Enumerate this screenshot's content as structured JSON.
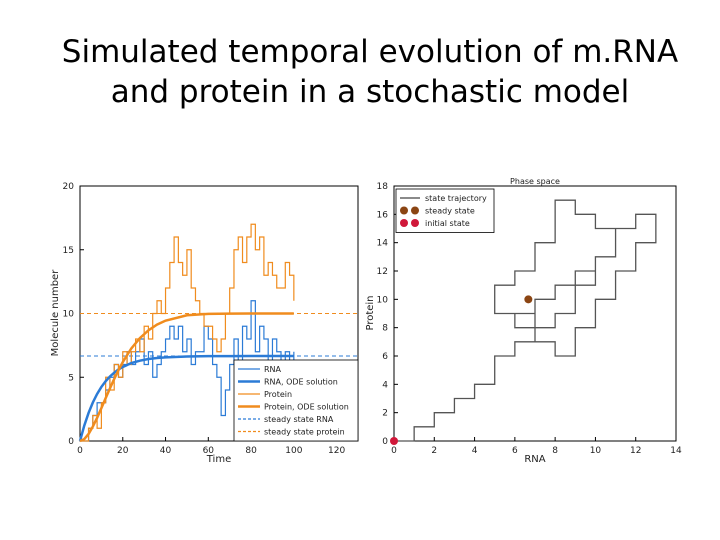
{
  "slide": {
    "title_line1": "Simulated temporal evolution of m.RNA",
    "title_line2": "and protein in a stochastic model"
  },
  "chart_data": [
    {
      "type": "line",
      "title": "",
      "xlabel": "Time",
      "ylabel": "Molecule number",
      "xlim": [
        0,
        130
      ],
      "ylim": [
        0,
        20
      ],
      "xticks": [
        "0",
        "20",
        "40",
        "60",
        "80",
        "100",
        "120"
      ],
      "yticks": [
        "0",
        "5",
        "10",
        "15",
        "20"
      ],
      "legend_position": "lower-right",
      "colors": {
        "rna": "#2b7bd6",
        "protein": "#f08c1e"
      },
      "legend": [
        {
          "label": "RNA",
          "color": "#2b7bd6",
          "style": "thin"
        },
        {
          "label": "RNA, ODE solution",
          "color": "#2b7bd6",
          "style": "thick"
        },
        {
          "label": "Protein",
          "color": "#f08c1e",
          "style": "thin"
        },
        {
          "label": "Protein, ODE solution",
          "color": "#f08c1e",
          "style": "thick"
        },
        {
          "label": "steady state RNA",
          "color": "#2b7bd6",
          "style": "dashed"
        },
        {
          "label": "steady state protein",
          "color": "#f08c1e",
          "style": "dashed"
        }
      ],
      "steady_state": {
        "rna": 6.67,
        "protein": 10
      },
      "series": [
        {
          "name": "RNA",
          "step": true,
          "x": [
            0,
            2,
            4,
            6,
            8,
            10,
            12,
            14,
            16,
            18,
            20,
            22,
            24,
            26,
            28,
            30,
            32,
            34,
            36,
            38,
            40,
            42,
            44,
            46,
            48,
            50,
            52,
            54,
            56,
            58,
            60,
            62,
            64,
            66,
            68,
            70,
            72,
            74,
            76,
            78,
            80,
            82,
            84,
            86,
            88,
            90,
            92,
            94,
            96,
            98,
            100
          ],
          "y": [
            0,
            0,
            1,
            2,
            3,
            3,
            4,
            5,
            6,
            5,
            6,
            7,
            6,
            7,
            8,
            6,
            7,
            5,
            6,
            7,
            8,
            9,
            8,
            9,
            7,
            8,
            6,
            7,
            7,
            9,
            8,
            6,
            5,
            2,
            4,
            6,
            8,
            6,
            9,
            8,
            11,
            7,
            9,
            8,
            6,
            8,
            7,
            6,
            7,
            6,
            7
          ]
        },
        {
          "name": "Protein",
          "step": true,
          "x": [
            0,
            2,
            4,
            6,
            8,
            10,
            12,
            14,
            16,
            18,
            20,
            22,
            24,
            26,
            28,
            30,
            32,
            34,
            36,
            38,
            40,
            42,
            44,
            46,
            48,
            50,
            52,
            54,
            56,
            58,
            60,
            62,
            64,
            66,
            68,
            70,
            72,
            74,
            76,
            78,
            80,
            82,
            84,
            86,
            88,
            90,
            92,
            94,
            96,
            98,
            100
          ],
          "y": [
            0,
            0,
            1,
            2,
            1,
            3,
            5,
            4,
            6,
            5,
            7,
            6,
            7,
            8,
            7,
            9,
            8,
            10,
            11,
            10,
            12,
            14,
            16,
            14,
            13,
            15,
            12,
            11,
            10,
            9,
            9,
            8,
            7,
            8,
            10,
            12,
            15,
            16,
            14,
            16,
            17,
            15,
            16,
            13,
            14,
            13,
            12,
            12,
            14,
            13,
            11
          ]
        },
        {
          "name": "RNA, ODE solution",
          "x": [
            0,
            2,
            4,
            6,
            8,
            10,
            12,
            14,
            16,
            18,
            20,
            24,
            28,
            32,
            36,
            40,
            50,
            60,
            70,
            80,
            90,
            100
          ],
          "y": [
            0,
            1.21,
            2.2,
            3.02,
            3.69,
            4.24,
            4.69,
            5.06,
            5.36,
            5.61,
            5.81,
            6.11,
            6.3,
            6.43,
            6.51,
            6.56,
            6.63,
            6.66,
            6.66,
            6.67,
            6.67,
            6.67
          ]
        },
        {
          "name": "Protein, ODE solution",
          "x": [
            0,
            2,
            4,
            6,
            8,
            10,
            12,
            14,
            16,
            18,
            20,
            24,
            28,
            32,
            36,
            40,
            50,
            60,
            70,
            80,
            90,
            100
          ],
          "y": [
            0,
            0.15,
            0.55,
            1.13,
            1.82,
            2.58,
            3.36,
            4.13,
            4.87,
            5.56,
            6.19,
            7.26,
            8.07,
            8.68,
            9.13,
            9.44,
            9.86,
            9.97,
            9.99,
            10,
            10,
            10
          ]
        }
      ]
    },
    {
      "type": "line",
      "title": "Phase space",
      "xlabel": "RNA",
      "ylabel": "Protein",
      "xlim": [
        0,
        14
      ],
      "ylim": [
        0,
        18
      ],
      "xticks": [
        "0",
        "2",
        "4",
        "6",
        "8",
        "10",
        "12",
        "14"
      ],
      "yticks": [
        "0",
        "2",
        "4",
        "6",
        "8",
        "10",
        "12",
        "14",
        "16",
        "18"
      ],
      "legend_position": "top-left",
      "legend": [
        {
          "label": "state trajectory",
          "color": "#444444",
          "marker": "line"
        },
        {
          "label": "steady state",
          "color": "#8b4513",
          "marker": "dot"
        },
        {
          "label": "initial state",
          "color": "#d0183a",
          "marker": "dot"
        }
      ],
      "steady_state_point": {
        "rna": 6.67,
        "protein": 10
      },
      "initial_state_point": {
        "rna": 0,
        "protein": 0
      },
      "trajectory": {
        "x": [
          0,
          1,
          1,
          2,
          2,
          3,
          3,
          4,
          4,
          5,
          5,
          6,
          6,
          7,
          7,
          6,
          6,
          7,
          7,
          8,
          8,
          9,
          9,
          10,
          10,
          11,
          11,
          10,
          10,
          9,
          9,
          8,
          8,
          7,
          7,
          6,
          6,
          5,
          5,
          6,
          6,
          7,
          7,
          8,
          8,
          9,
          9,
          10,
          10,
          11,
          11,
          12,
          12,
          13,
          13,
          12,
          12,
          11,
          11,
          10,
          10,
          9,
          9,
          8,
          8,
          7,
          7
        ],
        "y": [
          0,
          0,
          1,
          1,
          2,
          2,
          3,
          3,
          4,
          4,
          6,
          6,
          7,
          7,
          8,
          8,
          9,
          9,
          10,
          10,
          11,
          11,
          12,
          12,
          13,
          13,
          15,
          15,
          16,
          16,
          17,
          17,
          14,
          14,
          12,
          12,
          11,
          11,
          9,
          9,
          8,
          8,
          7,
          7,
          6,
          6,
          8,
          8,
          10,
          10,
          12,
          12,
          14,
          14,
          16,
          16,
          15,
          15,
          13,
          13,
          11,
          11,
          9,
          9,
          8,
          8,
          10
        ]
      }
    }
  ]
}
